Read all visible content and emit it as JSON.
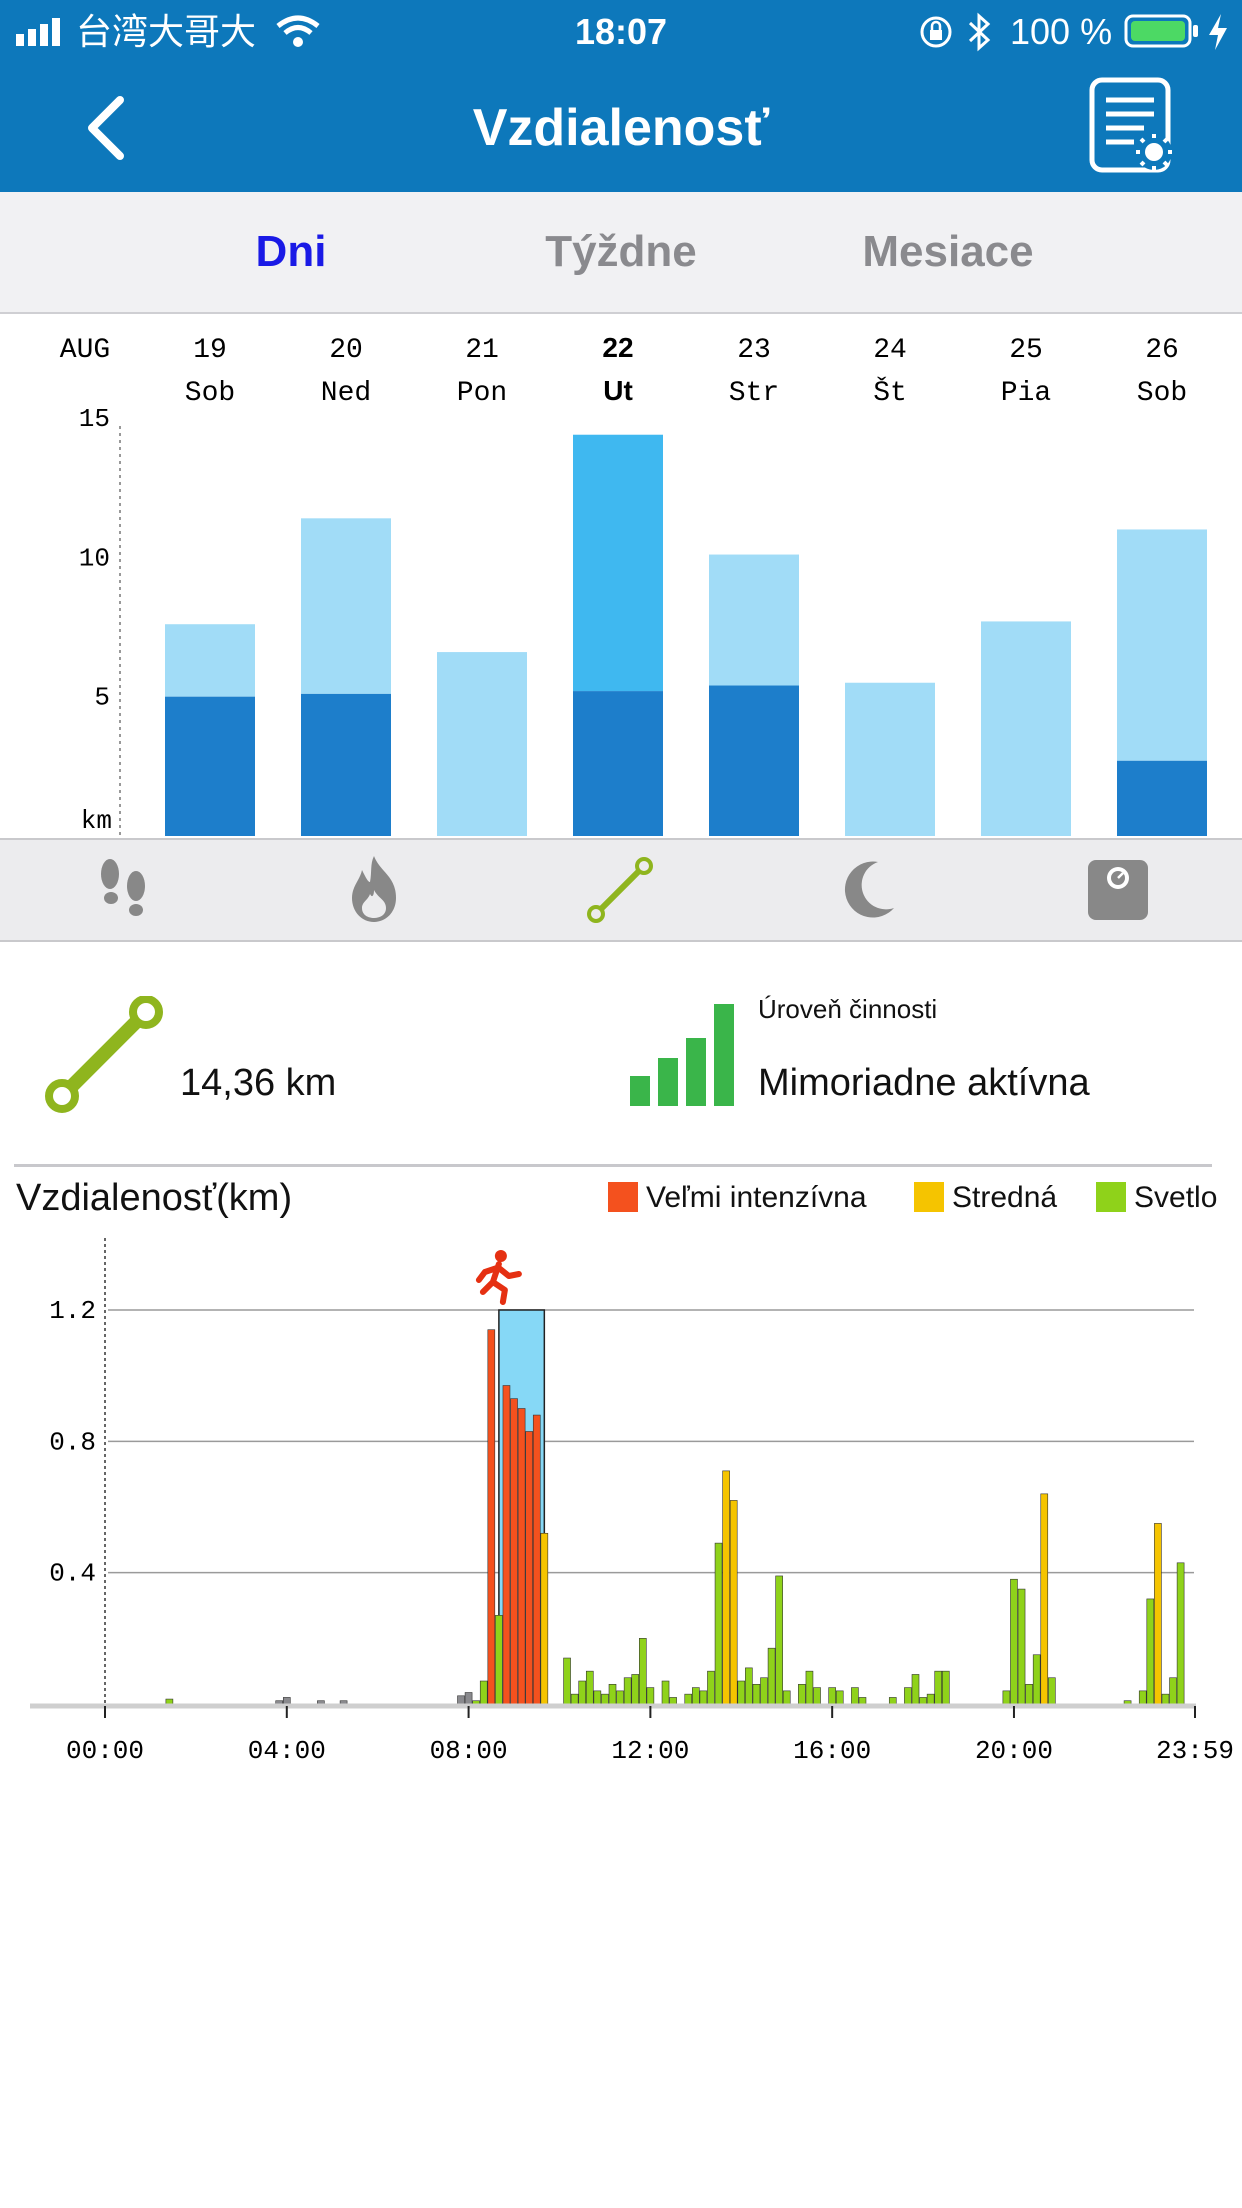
{
  "status_bar": {
    "carrier": "台湾大哥大",
    "time": "18:07",
    "battery": "100 %"
  },
  "nav": {
    "title": "Vzdialenosť",
    "back_icon": "chevron-left-icon",
    "report_icon": "report-settings-icon"
  },
  "tabs": [
    {
      "label": "Dni",
      "active": true
    },
    {
      "label": "Týždne",
      "active": false
    },
    {
      "label": "Mesiace",
      "active": false
    }
  ],
  "week_chart": {
    "month": "AUG",
    "unit": "km",
    "y_ticks": [
      "15",
      "10",
      "5"
    ],
    "days": [
      {
        "num": "19",
        "name": "Sob",
        "selected": false
      },
      {
        "num": "20",
        "name": "Ned",
        "selected": false
      },
      {
        "num": "21",
        "name": "Pon",
        "selected": false
      },
      {
        "num": "22",
        "name": "Ut",
        "selected": true
      },
      {
        "num": "23",
        "name": "Str",
        "selected": false
      },
      {
        "num": "24",
        "name": "Št",
        "selected": false
      },
      {
        "num": "25",
        "name": "Pia",
        "selected": false
      },
      {
        "num": "26",
        "name": "Sob",
        "selected": false
      }
    ]
  },
  "icon_bar": [
    {
      "icon": "footsteps-icon",
      "active": false
    },
    {
      "icon": "flame-icon",
      "active": false
    },
    {
      "icon": "distance-icon",
      "active": true
    },
    {
      "icon": "moon-icon",
      "active": false
    },
    {
      "icon": "scale-icon",
      "active": false
    }
  ],
  "summary": {
    "distance_value": "14,36 km",
    "activity_label": "Úroveň činnosti",
    "activity_value": "Mimoriadne aktívna"
  },
  "detail_chart": {
    "title": "Vzdialenosť(km)",
    "legend": [
      {
        "label": "Veľmi intenzívna",
        "color": "#f4511e"
      },
      {
        "label": "Stredná",
        "color": "#f5c400"
      },
      {
        "label": "Svetlo",
        "color": "#8fd21a"
      }
    ],
    "y_ticks": [
      "1.2",
      "0.8",
      "0.4"
    ],
    "x_ticks": [
      "00:00",
      "04:00",
      "08:00",
      "12:00",
      "16:00",
      "20:00",
      "23:59"
    ]
  },
  "colors": {
    "header_blue": "#0d78bb",
    "active_tab": "#1a1ae6",
    "inactive_tab": "#8a8a8e",
    "bar_dark": "#1d7ecb",
    "bar_light": "#a1dcf7",
    "bar_selected": "#3fb8f0",
    "accent_green": "#8fb51e"
  },
  "chart_data": [
    {
      "type": "bar",
      "title": "",
      "categories": [
        "19 Sob",
        "20 Ned",
        "21 Pon",
        "22 Ut",
        "23 Str",
        "24 Št",
        "25 Pia",
        "26 Sob"
      ],
      "series": [
        {
          "values": [
            5.0,
            5.1,
            0,
            5.2,
            5.4,
            0,
            0,
            2.7
          ]
        },
        {
          "values": [
            2.6,
            6.3,
            6.6,
            9.2,
            4.7,
            5.5,
            7.7,
            8.3
          ]
        }
      ],
      "stacked": true,
      "totals": [
        7.6,
        11.4,
        6.6,
        14.4,
        10.1,
        5.5,
        7.7,
        11.0
      ],
      "ylabel": "km",
      "ylim": [
        0,
        15
      ],
      "selected_category": "22 Ut"
    },
    {
      "type": "bar",
      "title": "Vzdialenosť(km)",
      "x_label_ticks": [
        "00:00",
        "04:00",
        "08:00",
        "12:00",
        "16:00",
        "20:00",
        "23:59"
      ],
      "ylim": [
        0,
        1.2
      ],
      "y_ticks": [
        0.4,
        0.8,
        1.2
      ],
      "highlight_range": [
        "08:40",
        "09:40"
      ],
      "marker": "runner-icon at 08:40",
      "bars": [
        {
          "t": "01:25",
          "v": 0.015,
          "level": "Svetlo"
        },
        {
          "t": "03:50",
          "v": 0.01,
          "level": "inactive"
        },
        {
          "t": "04:00",
          "v": 0.02,
          "level": "inactive"
        },
        {
          "t": "04:45",
          "v": 0.01,
          "level": "inactive"
        },
        {
          "t": "05:15",
          "v": 0.01,
          "level": "inactive"
        },
        {
          "t": "07:50",
          "v": 0.025,
          "level": "inactive"
        },
        {
          "t": "08:00",
          "v": 0.035,
          "level": "inactive"
        },
        {
          "t": "08:10",
          "v": 0.01,
          "level": "Svetlo"
        },
        {
          "t": "08:20",
          "v": 0.07,
          "level": "Svetlo"
        },
        {
          "t": "08:30",
          "v": 1.14,
          "level": "Veľmi intenzívna"
        },
        {
          "t": "08:40",
          "v": 0.27,
          "level": "Svetlo"
        },
        {
          "t": "08:50",
          "v": 0.97,
          "level": "Veľmi intenzívna"
        },
        {
          "t": "09:00",
          "v": 0.93,
          "level": "Veľmi intenzívna"
        },
        {
          "t": "09:10",
          "v": 0.9,
          "level": "Veľmi intenzívna"
        },
        {
          "t": "09:20",
          "v": 0.83,
          "level": "Veľmi intenzívna"
        },
        {
          "t": "09:30",
          "v": 0.88,
          "level": "Veľmi intenzívna"
        },
        {
          "t": "09:40",
          "v": 0.52,
          "level": "Stredná"
        },
        {
          "t": "10:10",
          "v": 0.14,
          "level": "Svetlo"
        },
        {
          "t": "10:20",
          "v": 0.03,
          "level": "Svetlo"
        },
        {
          "t": "10:30",
          "v": 0.07,
          "level": "Svetlo"
        },
        {
          "t": "10:40",
          "v": 0.1,
          "level": "Svetlo"
        },
        {
          "t": "10:50",
          "v": 0.04,
          "level": "Svetlo"
        },
        {
          "t": "11:00",
          "v": 0.03,
          "level": "Svetlo"
        },
        {
          "t": "11:10",
          "v": 0.06,
          "level": "Svetlo"
        },
        {
          "t": "11:20",
          "v": 0.04,
          "level": "Svetlo"
        },
        {
          "t": "11:30",
          "v": 0.08,
          "level": "Svetlo"
        },
        {
          "t": "11:40",
          "v": 0.09,
          "level": "Svetlo"
        },
        {
          "t": "11:50",
          "v": 0.2,
          "level": "Svetlo"
        },
        {
          "t": "12:00",
          "v": 0.05,
          "level": "Svetlo"
        },
        {
          "t": "12:20",
          "v": 0.07,
          "level": "Svetlo"
        },
        {
          "t": "12:30",
          "v": 0.02,
          "level": "Svetlo"
        },
        {
          "t": "12:50",
          "v": 0.03,
          "level": "Svetlo"
        },
        {
          "t": "13:00",
          "v": 0.05,
          "level": "Svetlo"
        },
        {
          "t": "13:10",
          "v": 0.04,
          "level": "Svetlo"
        },
        {
          "t": "13:20",
          "v": 0.1,
          "level": "Svetlo"
        },
        {
          "t": "13:30",
          "v": 0.49,
          "level": "Svetlo"
        },
        {
          "t": "13:40",
          "v": 0.71,
          "level": "Stredná"
        },
        {
          "t": "13:50",
          "v": 0.62,
          "level": "Stredná"
        },
        {
          "t": "14:00",
          "v": 0.07,
          "level": "Svetlo"
        },
        {
          "t": "14:10",
          "v": 0.11,
          "level": "Svetlo"
        },
        {
          "t": "14:20",
          "v": 0.06,
          "level": "Svetlo"
        },
        {
          "t": "14:30",
          "v": 0.08,
          "level": "Svetlo"
        },
        {
          "t": "14:40",
          "v": 0.17,
          "level": "Svetlo"
        },
        {
          "t": "14:50",
          "v": 0.39,
          "level": "Svetlo"
        },
        {
          "t": "15:00",
          "v": 0.04,
          "level": "Svetlo"
        },
        {
          "t": "15:20",
          "v": 0.06,
          "level": "Svetlo"
        },
        {
          "t": "15:30",
          "v": 0.1,
          "level": "Svetlo"
        },
        {
          "t": "15:40",
          "v": 0.05,
          "level": "Svetlo"
        },
        {
          "t": "16:00",
          "v": 0.05,
          "level": "Svetlo"
        },
        {
          "t": "16:10",
          "v": 0.04,
          "level": "Svetlo"
        },
        {
          "t": "16:30",
          "v": 0.05,
          "level": "Svetlo"
        },
        {
          "t": "16:40",
          "v": 0.02,
          "level": "Svetlo"
        },
        {
          "t": "17:20",
          "v": 0.02,
          "level": "Svetlo"
        },
        {
          "t": "17:40",
          "v": 0.05,
          "level": "Svetlo"
        },
        {
          "t": "17:50",
          "v": 0.09,
          "level": "Svetlo"
        },
        {
          "t": "18:00",
          "v": 0.02,
          "level": "Svetlo"
        },
        {
          "t": "18:10",
          "v": 0.03,
          "level": "Svetlo"
        },
        {
          "t": "18:20",
          "v": 0.1,
          "level": "Svetlo"
        },
        {
          "t": "18:30",
          "v": 0.1,
          "level": "Svetlo"
        },
        {
          "t": "19:50",
          "v": 0.04,
          "level": "Svetlo"
        },
        {
          "t": "20:00",
          "v": 0.38,
          "level": "Svetlo"
        },
        {
          "t": "20:10",
          "v": 0.35,
          "level": "Svetlo"
        },
        {
          "t": "20:20",
          "v": 0.06,
          "level": "Svetlo"
        },
        {
          "t": "20:30",
          "v": 0.15,
          "level": "Svetlo"
        },
        {
          "t": "20:40",
          "v": 0.64,
          "level": "Stredná"
        },
        {
          "t": "20:50",
          "v": 0.08,
          "level": "Svetlo"
        },
        {
          "t": "22:30",
          "v": 0.01,
          "level": "Svetlo"
        },
        {
          "t": "22:50",
          "v": 0.04,
          "level": "Svetlo"
        },
        {
          "t": "23:00",
          "v": 0.32,
          "level": "Svetlo"
        },
        {
          "t": "23:10",
          "v": 0.55,
          "level": "Stredná"
        },
        {
          "t": "23:20",
          "v": 0.03,
          "level": "Svetlo"
        },
        {
          "t": "23:30",
          "v": 0.08,
          "level": "Svetlo"
        },
        {
          "t": "23:40",
          "v": 0.43,
          "level": "Svetlo"
        }
      ]
    }
  ]
}
